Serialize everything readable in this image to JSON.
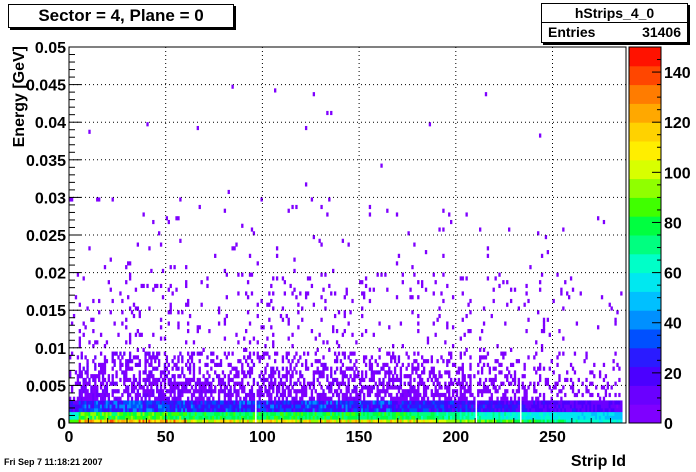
{
  "title": "Sector = 4, Plane = 0",
  "stats": {
    "name": "hStrips_4_0",
    "entries_label": "Entries",
    "entries_value": "31406"
  },
  "footer_timestamp": "Fri Sep  7 11:18:21 2007",
  "chart_data": {
    "type": "heatmap",
    "xlabel": "Strip Id",
    "ylabel": "Energy [GeV]",
    "xlim": [
      0,
      288
    ],
    "ylim": [
      0,
      0.05
    ],
    "x_ticks": [
      0,
      50,
      100,
      150,
      200,
      250
    ],
    "x_tick_labels": [
      "0",
      "50",
      "100",
      "150",
      "200",
      "250"
    ],
    "y_ticks": [
      0,
      0.005,
      0.01,
      0.015,
      0.02,
      0.025,
      0.03,
      0.035,
      0.04,
      0.045,
      0.05
    ],
    "y_tick_labels": [
      "0",
      "0.005",
      "0.01",
      "0.015",
      "0.02",
      "0.025",
      "0.03",
      "0.035",
      "0.04",
      "0.045",
      "0.05"
    ],
    "grid": true,
    "z_range": [
      0,
      150
    ],
    "z_ticks": [
      0,
      20,
      40,
      60,
      80,
      100,
      120,
      140
    ],
    "z_tick_labels": [
      "0",
      "20",
      "40",
      "60",
      "80",
      "100",
      "120",
      "140"
    ],
    "palette": [
      "#7f00ff",
      "#6a00ff",
      "#4b00ff",
      "#2a1bff",
      "#0050ff",
      "#0090ff",
      "#00c0ff",
      "#00e8f0",
      "#00ffc8",
      "#00ff80",
      "#00ff40",
      "#40ff00",
      "#90ff00",
      "#d8ff00",
      "#ffee00",
      "#ffd200",
      "#ffa800",
      "#ff7c00",
      "#ff4600",
      "#ff1200"
    ],
    "x_bin_count": 288,
    "y_bin_count": 100,
    "description_summary": {
      "dense_band_top_energy": 0.0095,
      "sparse_tail_max_energy": 0.045,
      "peak_bin_content": 145,
      "empty_strips": [
        96,
        210,
        233
      ]
    }
  }
}
